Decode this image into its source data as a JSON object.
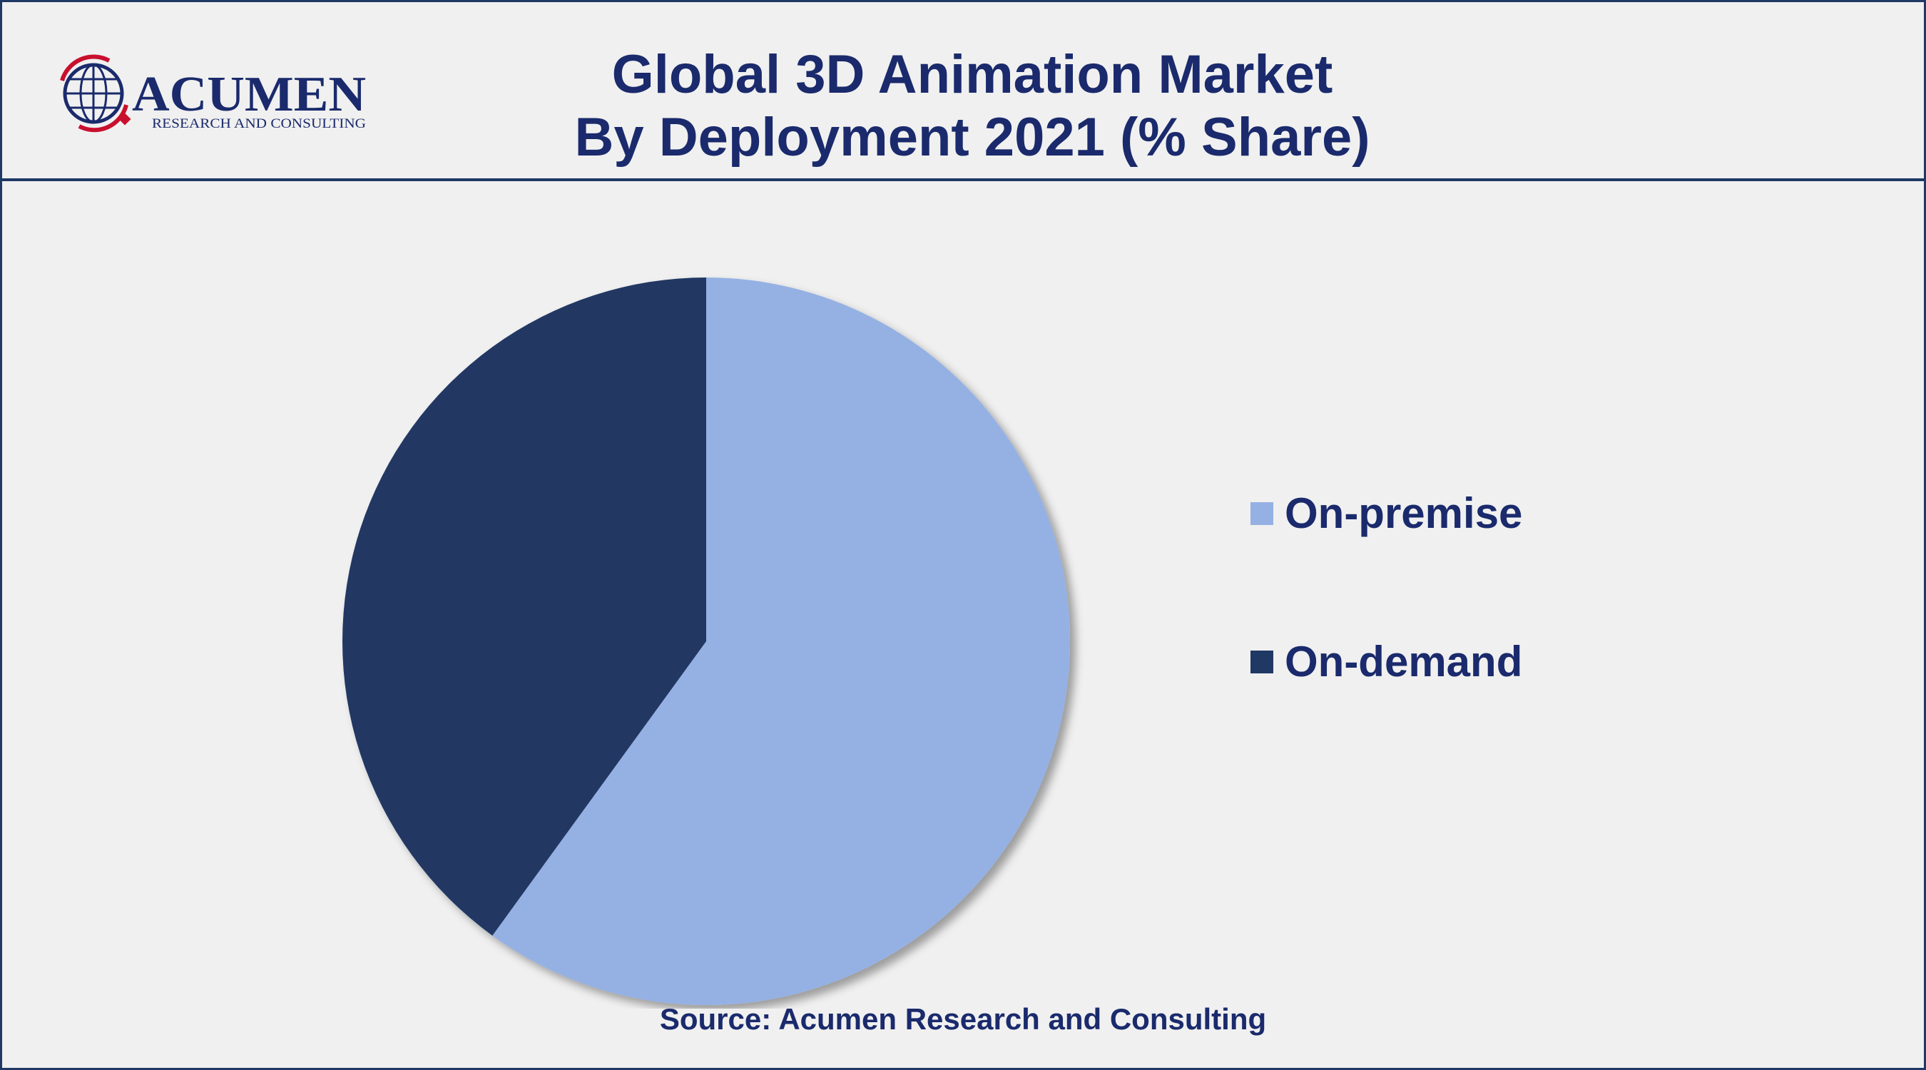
{
  "brand": {
    "name": "ACUMEN",
    "tagline": "RESEARCH AND CONSULTING",
    "colors": {
      "navy": "#1a2a6c",
      "red": "#c8102e"
    }
  },
  "chart_data": {
    "type": "pie",
    "title": "Global 3D Animation Market",
    "subtitle": "By Deployment 2021 (% Share)",
    "categories": [
      "On-premise",
      "On-demand"
    ],
    "values": [
      60,
      40
    ],
    "colors": [
      "#95b1e3",
      "#203864"
    ],
    "legend_position": "right",
    "source": "Source: Acumen Research and Consulting"
  }
}
